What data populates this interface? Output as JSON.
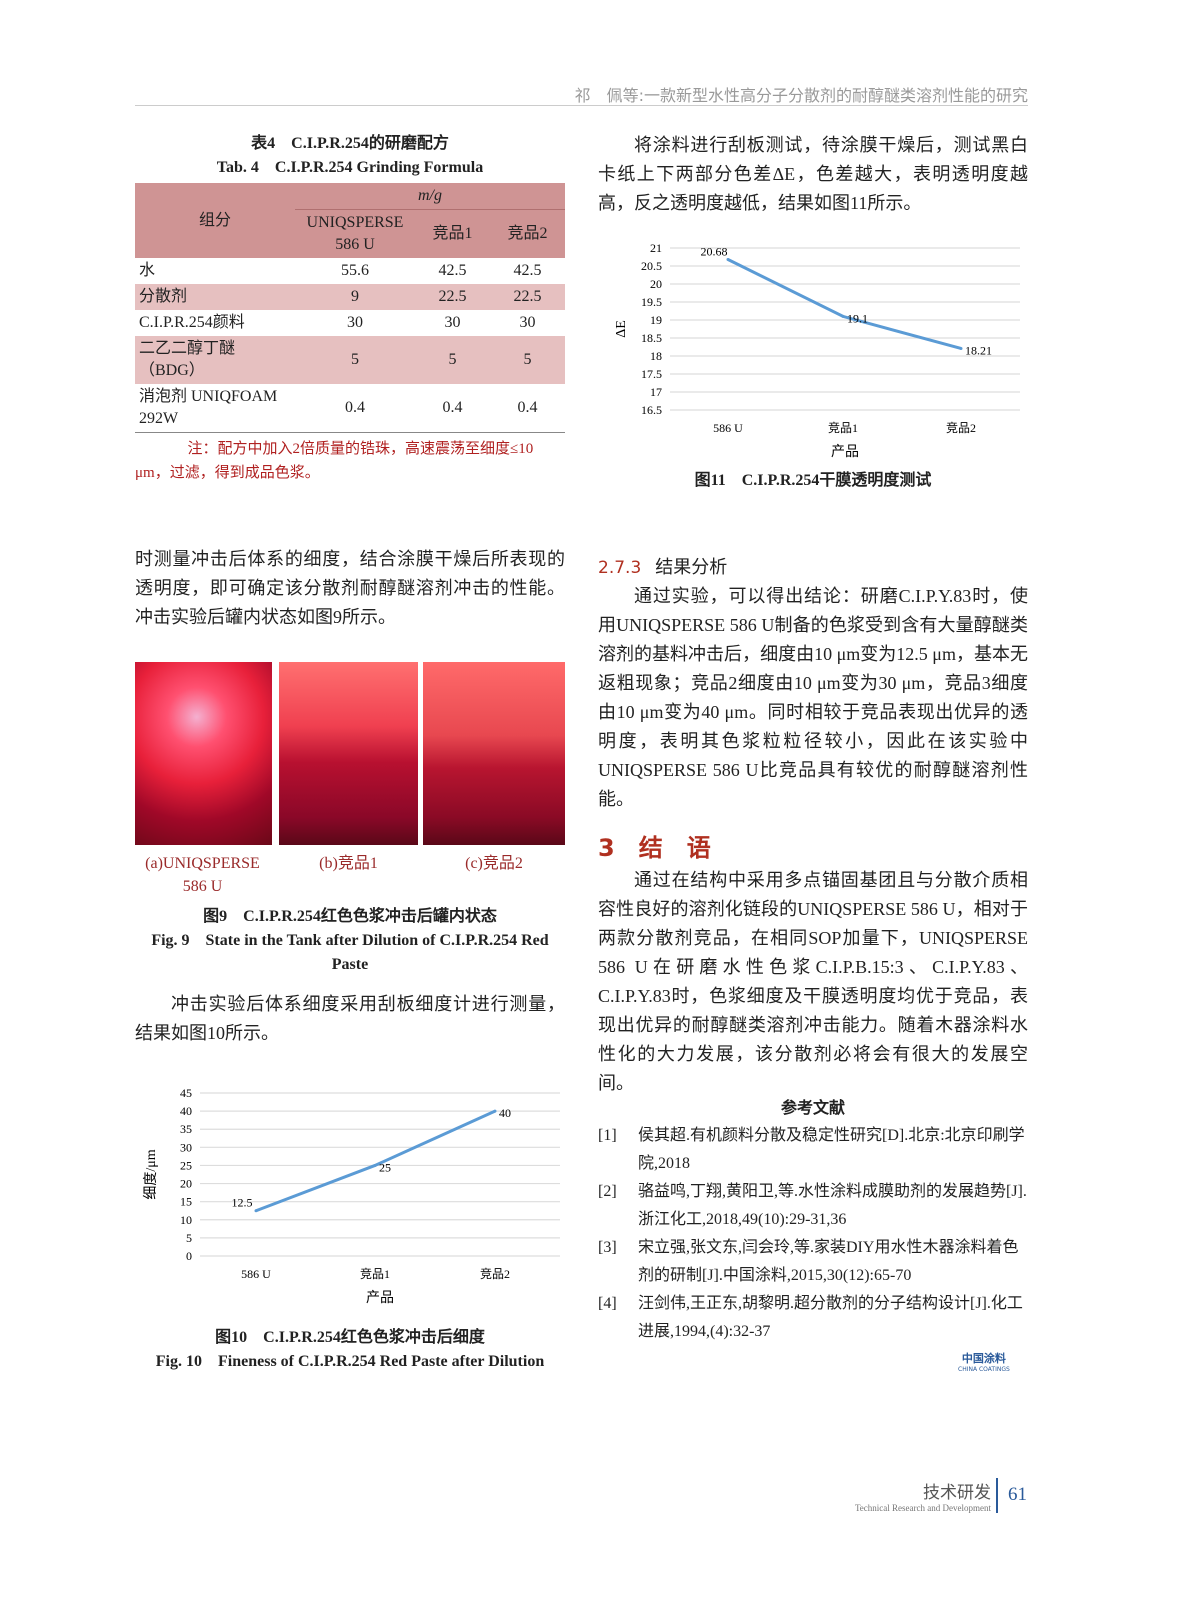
{
  "header": {
    "running_title": "祁　佩等:一款新型水性高分子分散剂的耐醇醚类溶剂性能的研究"
  },
  "table4": {
    "title_cn": "表4　C.I.P.R.254的研磨配方",
    "title_en": "Tab. 4　C.I.P.R.254 Grinding Formula",
    "col_component": "组分",
    "unit": "m/g",
    "cols": [
      "UNIQSPERSE 586 U",
      "竞品1",
      "竞品2"
    ],
    "rows": [
      {
        "name": "水",
        "values": [
          "55.6",
          "42.5",
          "42.5"
        ]
      },
      {
        "name": "分散剂",
        "values": [
          "9",
          "22.5",
          "22.5"
        ]
      },
      {
        "name": "C.I.P.R.254颜料",
        "values": [
          "30",
          "30",
          "30"
        ]
      },
      {
        "name": "二乙二醇丁醚（BDG）",
        "values": [
          "5",
          "5",
          "5"
        ]
      },
      {
        "name": "消泡剂 UNIQFOAM 292W",
        "values": [
          "0.4",
          "0.4",
          "0.4"
        ]
      }
    ],
    "note": "注：配方中加入2倍质量的锆珠，高速震荡至细度≤10 μm，过滤，得到成品色浆。"
  },
  "left": {
    "para1": "时测量冲击后体系的细度，结合涂膜干燥后所表现的透明度，即可确定该分散剂耐醇醚溶剂冲击的性能。冲击实验后罐内状态如图9所示。",
    "fig9_labels": [
      "(a)UNIQSPERSE 586 U",
      "(b)竞品1",
      "(c)竞品2"
    ],
    "fig9_cn": "图9　C.I.P.R.254红色色浆冲击后罐内状态",
    "fig9_en": "Fig. 9　State in the Tank after Dilution of C.I.P.R.254 Red Paste",
    "para2": "冲击实验后体系细度采用刮板细度计进行测量，结果如图10所示。",
    "fig10_cn": "图10　C.I.P.R.254红色色浆冲击后细度",
    "fig10_en": "Fig. 10　Fineness of C.I.P.R.254 Red Paste after Dilution"
  },
  "right": {
    "para1": "将涂料进行刮板测试，待涂膜干燥后，测试黑白卡纸上下两部分色差ΔE，色差越大，表明透明度越高，反之透明度越低，结果如图11所示。",
    "fig11_cn": "图11　C.I.P.R.254干膜透明度测试",
    "sec273_num": "2.7.3",
    "sec273_title": "结果分析",
    "para2": "通过实验，可以得出结论：研磨C.I.P.Y.83时，使用UNIQSPERSE 586 U制备的色浆受到含有大量醇醚类溶剂的基料冲击后，细度由10 μm变为12.5 μm，基本无返粗现象；竞品2细度由10 μm变为30 μm，竞品3细度由10 μm变为40 μm。同时相较于竞品表现出优异的透明度，表明其色浆粒粒径较小，因此在该实验中UNIQSPERSE 586 U比竞品具有较优的耐醇醚溶剂性能。",
    "sec3": "3　结　语",
    "para3": "通过在结构中采用多点锚固基团且与分散介质相容性良好的溶剂化链段的UNIQSPERSE 586 U，相对于两款分散剂竞品，在相同SOP加量下，UNIQSPERSE 586 U在研磨水性色浆C.I.P.B.15:3、C.I.P.Y.83、C.I.P.Y.83时，色浆细度及干膜透明度均优于竞品，表现出优异的耐醇醚类溶剂冲击能力。随着木器涂料水性化的大力发展，该分散剂必将会有很大的发展空间。",
    "refs_title": "参考文献",
    "refs": [
      {
        "n": "[1]",
        "t": "侯其超.有机颜料分散及稳定性研究[D].北京:北京印刷学院,2018"
      },
      {
        "n": "[2]",
        "t": "骆益鸣,丁翔,黄阳卫,等.水性涂料成膜助剂的发展趋势[J].浙江化工,2018,49(10):29-31,36"
      },
      {
        "n": "[3]",
        "t": "宋立强,张文东,闫会玲,等.家装DIY用水性木器涂料着色剂的研制[J].中国涂料,2015,30(12):65-70"
      },
      {
        "n": "[4]",
        "t": "汪剑伟,王正东,胡黎明.超分散剂的分子结构设计[J].化工进展,1994,(4):32-37"
      }
    ],
    "logo_cn": "中国涂料",
    "logo_en": "CHINA COATINGS"
  },
  "footer": {
    "section_cn": "技术研发",
    "section_en": "Technical Research and Development",
    "page": "61"
  },
  "chart_data": [
    {
      "type": "line",
      "categories": [
        "586 U",
        "竞品1",
        "竞品2"
      ],
      "values": [
        20.68,
        19.1,
        18.21
      ],
      "data_labels": [
        "20.68",
        "19.1",
        "18.21"
      ],
      "xlabel": "产品",
      "ylabel": "ΔE",
      "ylim": [
        16.5,
        21
      ],
      "yticks": [
        "21",
        "20.5",
        "20",
        "19.5",
        "19",
        "18.5",
        "18",
        "17.5",
        "17",
        "16.5"
      ],
      "grid": true,
      "color": "#5b9bd5"
    },
    {
      "type": "line",
      "categories": [
        "586 U",
        "竞品1",
        "竞品2"
      ],
      "values": [
        12.5,
        25,
        40
      ],
      "data_labels": [
        "12.5",
        "25",
        "40"
      ],
      "xlabel": "产品",
      "ylabel": "细度/μm",
      "ylim": [
        0,
        45
      ],
      "yticks": [
        "45",
        "40",
        "35",
        "30",
        "25",
        "20",
        "15",
        "10",
        "5",
        "0"
      ],
      "grid": true,
      "color": "#5b9bd5"
    }
  ]
}
